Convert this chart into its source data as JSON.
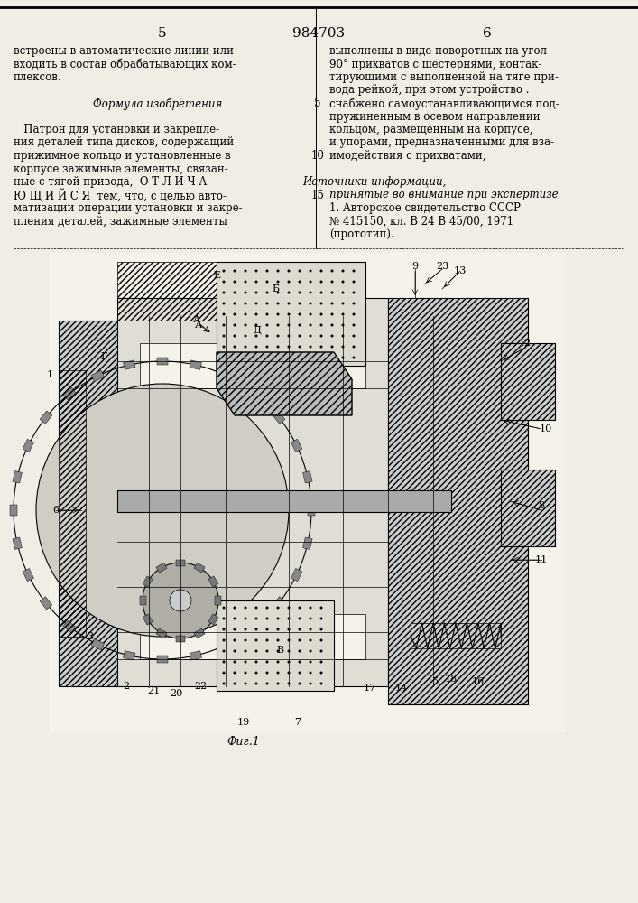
{
  "page_color": "#e8e4dc",
  "title_number": "984703",
  "page_left": "5",
  "page_right": "6",
  "col_left_text": [
    "встроены в автоматические линии или",
    "входить в состав обрабатывающих ком-",
    "плексов.",
    "",
    "        Формула изобретения",
    "",
    "   Патрон для установки и закрепле-",
    "ния деталей типа дисков, содержащий",
    "прижимное кольцо и установленные в",
    "корпусе зажимные элементы, связан-",
    "ные с тягой привода,  О Т Л И Ч А -",
    "Ю Щ И Й С Я  тем, что, с целью авто-",
    "матизации операции установки и закре-",
    "пления деталей, зажимные элементы"
  ],
  "col_right_text": [
    "выполнены в виде поворотных на угол",
    "90° прихватов с шестернями, контак-",
    "тирующими с выполненной на тяге при-",
    "вода рейкой, при этом устройство .",
    "снабжено самоустанавливающимся под-",
    "пружиненным в осевом направлении",
    "кольцом, размещенным на корпусе,",
    "и упорами, предназначенными для вза-",
    "имодействия с прихватами,"
  ],
  "right_line_numbers": [
    "5",
    "10"
  ],
  "sources_header": "Источники информации,",
  "sources_subheader": "принятые во внимание при экспертизе",
  "sources_text": [
    "1. Авторское свидетельство СССР",
    "№ 415150, кл. В 24 В 45/00, 1971",
    "(прототип)."
  ],
  "fig_caption": "Фиг.1",
  "background": "#f0ede5"
}
